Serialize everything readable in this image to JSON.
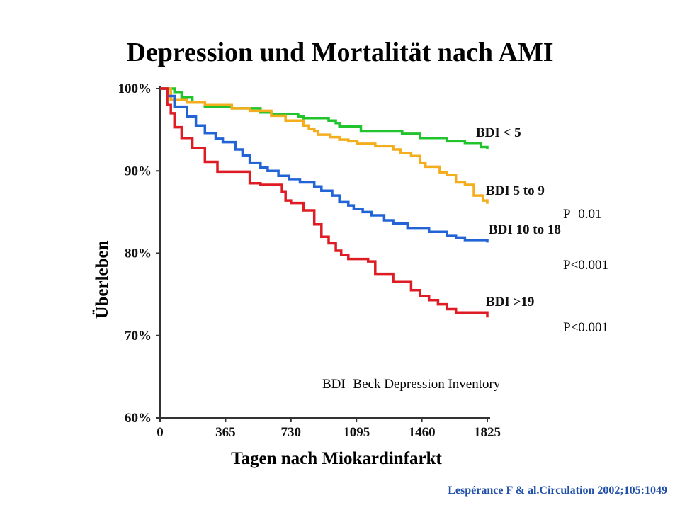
{
  "slide": {
    "title": "Depression und Mortalität nach AMI",
    "p_values": [
      "P=0.01",
      "P<0.001",
      "P<0.001"
    ],
    "note": "BDI=Beck Depression Inventory",
    "source": "Lespérance F & al.Circulation 2002;105:1049"
  },
  "chart_data": {
    "type": "line",
    "title": "Depression und Mortalität nach AMI",
    "xlabel": "Tagen nach Miokardinfarkt",
    "ylabel": "Überleben",
    "x_ticks": [
      0,
      365,
      730,
      1095,
      1460,
      1825
    ],
    "y_ticks": [
      "60%",
      "70%",
      "80%",
      "90%",
      "100%"
    ],
    "xlim": [
      0,
      1825
    ],
    "ylim": [
      60,
      100
    ],
    "grid": false,
    "series": [
      {
        "name": "BDI < 5",
        "color": "#22c42e",
        "x": [
          0,
          80,
          120,
          180,
          250,
          400,
          560,
          620,
          770,
          800,
          940,
          980,
          1000,
          1120,
          1350,
          1450,
          1600,
          1700,
          1790,
          1825
        ],
        "y": [
          100,
          99.6,
          98.9,
          98.3,
          97.8,
          97.6,
          97.1,
          96.9,
          96.6,
          96.4,
          96.1,
          95.8,
          95.4,
          94.8,
          94.5,
          94.0,
          93.6,
          93.4,
          92.9,
          92.6
        ]
      },
      {
        "name": "BDI 5 to 9",
        "color": "#f4ad1c",
        "x": [
          0,
          60,
          150,
          250,
          400,
          500,
          620,
          700,
          800,
          830,
          860,
          880,
          950,
          1000,
          1050,
          1100,
          1200,
          1300,
          1340,
          1400,
          1450,
          1480,
          1560,
          1600,
          1650,
          1700,
          1750,
          1800,
          1825
        ],
        "y": [
          100,
          98.6,
          98.3,
          98.0,
          97.6,
          97.3,
          96.7,
          96.1,
          95.5,
          95.1,
          94.8,
          94.4,
          94.1,
          93.8,
          93.6,
          93.3,
          93.0,
          92.6,
          92.2,
          91.8,
          91.0,
          90.5,
          89.8,
          89.5,
          88.6,
          88.3,
          87.0,
          86.4,
          86.0
        ]
      },
      {
        "name": "BDI 10 to 18",
        "color": "#2263d6",
        "x": [
          0,
          40,
          80,
          150,
          200,
          250,
          310,
          350,
          420,
          460,
          500,
          560,
          600,
          660,
          720,
          780,
          860,
          900,
          960,
          1000,
          1050,
          1080,
          1130,
          1180,
          1250,
          1300,
          1380,
          1500,
          1600,
          1650,
          1700,
          1825
        ],
        "y": [
          100,
          99.1,
          97.8,
          96.6,
          95.5,
          94.6,
          93.9,
          93.5,
          92.6,
          91.9,
          91.0,
          90.4,
          90.0,
          89.4,
          89.0,
          88.6,
          88.1,
          87.6,
          87.0,
          86.2,
          85.8,
          85.4,
          85.0,
          84.6,
          84.0,
          83.6,
          83.0,
          82.6,
          82.1,
          81.9,
          81.6,
          81.3
        ]
      },
      {
        "name": "BDI >19",
        "color": "#dd1c24",
        "x": [
          0,
          40,
          60,
          80,
          120,
          180,
          250,
          320,
          500,
          560,
          680,
          700,
          730,
          800,
          860,
          900,
          940,
          980,
          1010,
          1050,
          1160,
          1200,
          1300,
          1400,
          1450,
          1500,
          1550,
          1600,
          1650,
          1825
        ],
        "y": [
          100,
          98.0,
          97.0,
          95.3,
          94.0,
          92.8,
          91.1,
          89.9,
          88.5,
          88.3,
          87.5,
          86.4,
          86.1,
          85.2,
          83.5,
          82.0,
          81.2,
          80.3,
          79.8,
          79.3,
          79.0,
          77.5,
          76.5,
          75.5,
          74.8,
          74.3,
          73.8,
          73.2,
          72.8,
          72.2
        ]
      }
    ]
  }
}
